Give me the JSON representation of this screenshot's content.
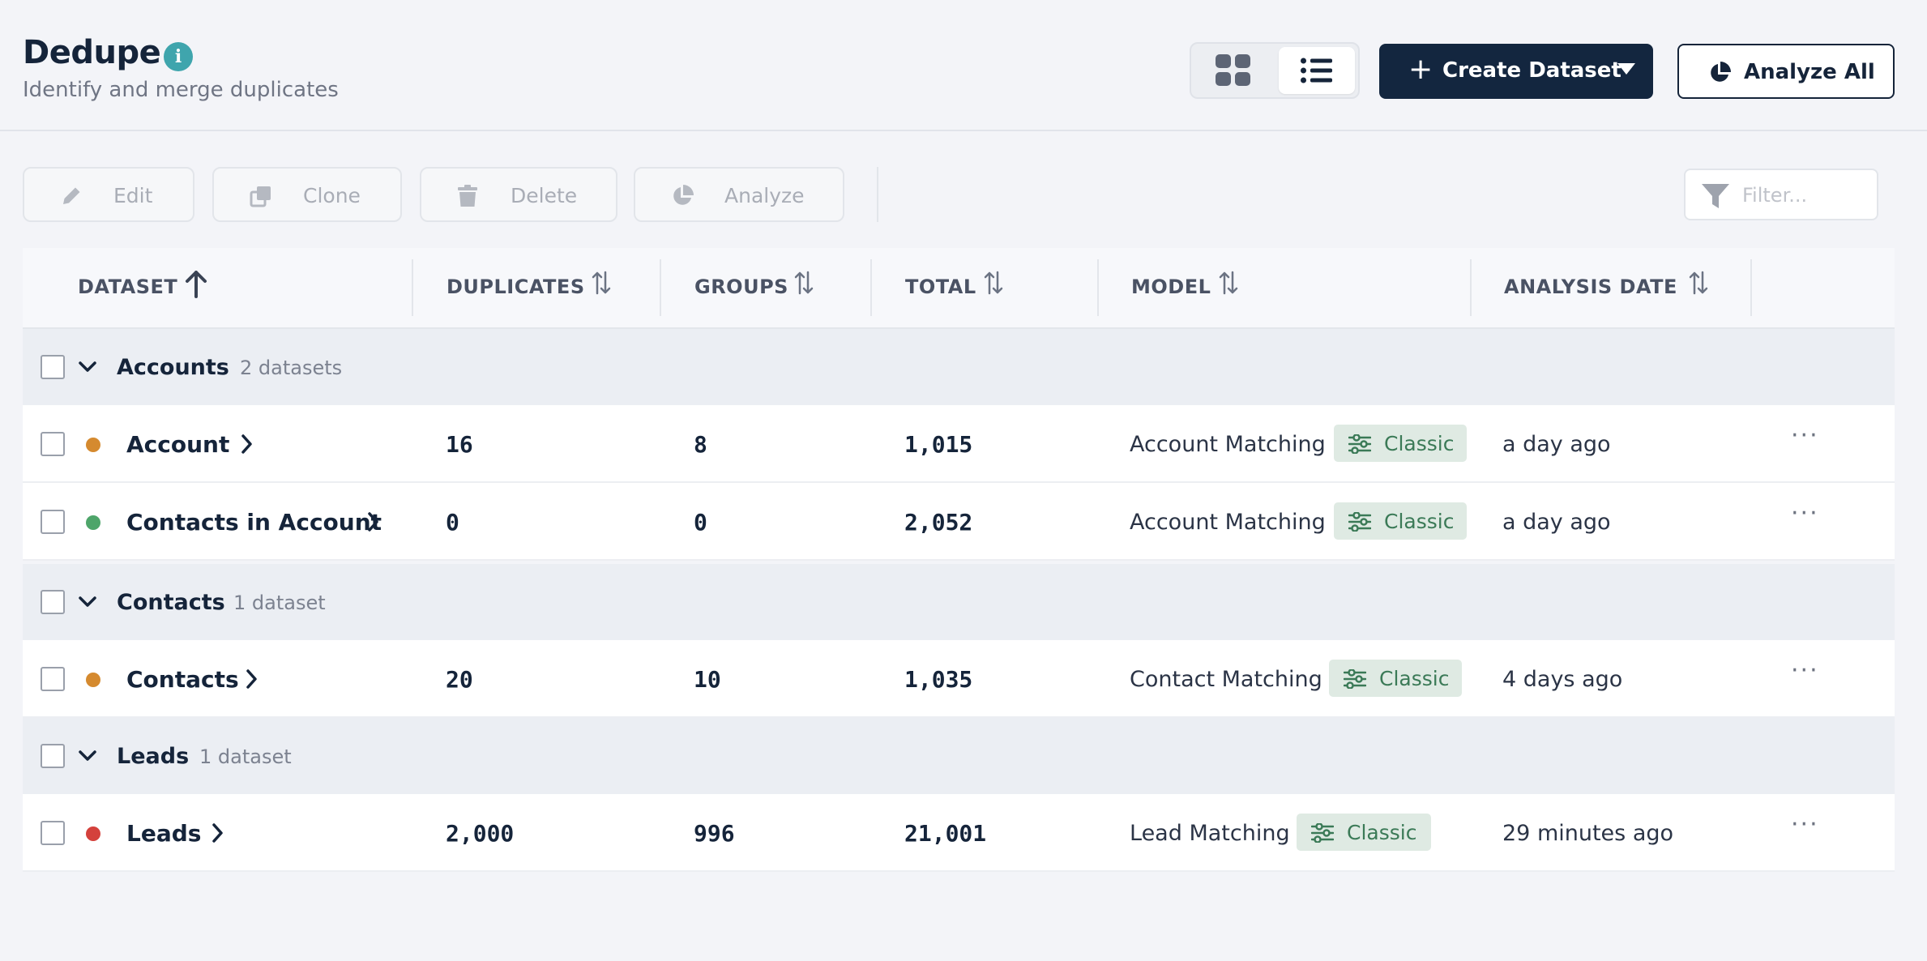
{
  "header": {
    "title": "Dedupe",
    "subtitle": "Identify and merge duplicates",
    "create_label": "Create Dataset",
    "analyze_all_label": "Analyze All"
  },
  "toolbar": {
    "edit": "Edit",
    "clone": "Clone",
    "delete": "Delete",
    "analyze": "Analyze",
    "filter_placeholder": "Filter..."
  },
  "columns": {
    "dataset": "DATASET",
    "duplicates": "DUPLICATES",
    "groups": "GROUPS",
    "total": "TOTAL",
    "model": "MODEL",
    "analysis_date": "ANALYSIS DATE"
  },
  "groups": [
    {
      "name": "Accounts",
      "count": "2 datasets",
      "rows": [
        {
          "name": "Account",
          "status_color": "#d58a2f",
          "duplicates": "16",
          "groups": "8",
          "total": "1,015",
          "model": "Account Matching",
          "badge": "Classic",
          "date": "a day ago"
        },
        {
          "name": "Contacts in Account",
          "status_color": "#4ea56a",
          "duplicates": "0",
          "groups": "0",
          "total": "2,052",
          "model": "Account Matching",
          "badge": "Classic",
          "date": "a day ago"
        }
      ]
    },
    {
      "name": "Contacts",
      "count": "1 dataset",
      "rows": [
        {
          "name": "Contacts",
          "status_color": "#d58a2f",
          "duplicates": "20",
          "groups": "10",
          "total": "1,035",
          "model": "Contact Matching",
          "badge": "Classic",
          "date": "4 days ago"
        }
      ]
    },
    {
      "name": "Leads",
      "count": "1 dataset",
      "rows": [
        {
          "name": "Leads",
          "status_color": "#d4413c",
          "duplicates": "2,000",
          "groups": "996",
          "total": "21,001",
          "model": "Lead Matching",
          "badge": "Classic",
          "date": "29 minutes ago"
        }
      ]
    }
  ],
  "more_label": "···"
}
